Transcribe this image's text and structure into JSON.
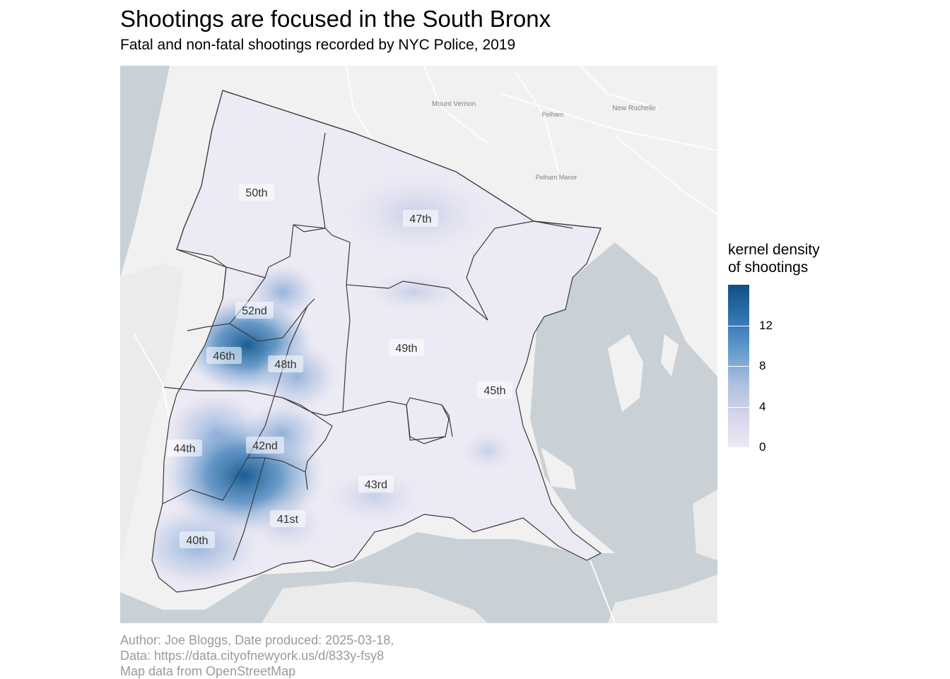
{
  "title": "Shootings are focused in the South Bronx",
  "subtitle": "Fatal and non-fatal shootings recorded by NYC Police, 2019",
  "legend": {
    "title_line1": "kernel density",
    "title_line2": "of shootings",
    "ticks": [
      {
        "label": "0",
        "value": 0
      },
      {
        "label": "4",
        "value": 4
      },
      {
        "label": "8",
        "value": 8
      },
      {
        "label": "12",
        "value": 12
      }
    ],
    "max_value": 16,
    "colors": [
      "#eceaf4",
      "#d5d4ea",
      "#a9bfdf",
      "#6a9ece",
      "#3a7cb8",
      "#0e4f86"
    ]
  },
  "precincts": [
    {
      "id": "50",
      "label": "50th"
    },
    {
      "id": "47",
      "label": "47th"
    },
    {
      "id": "52",
      "label": "52nd"
    },
    {
      "id": "46",
      "label": "46th"
    },
    {
      "id": "48",
      "label": "48th"
    },
    {
      "id": "49",
      "label": "49th"
    },
    {
      "id": "45",
      "label": "45th"
    },
    {
      "id": "44",
      "label": "44th"
    },
    {
      "id": "42",
      "label": "42nd"
    },
    {
      "id": "43",
      "label": "43rd"
    },
    {
      "id": "41",
      "label": "41st"
    },
    {
      "id": "40",
      "label": "40th"
    }
  ],
  "basemap_places": [
    {
      "id": "mount-vernon",
      "label": "Mount Vernon"
    },
    {
      "id": "pelham",
      "label": "Pelham"
    },
    {
      "id": "new-rochelle",
      "label": "New Rochelle"
    },
    {
      "id": "pelham-manor",
      "label": "Pelham Manor"
    }
  ],
  "caption": {
    "line1": "Author: Joe Bloggs, Date produced: 2025-03-18,",
    "line2": "Data: https://data.cityofnewyork.us/d/833y-fsy8",
    "line3": "Map data from OpenStreetMap"
  },
  "colors": {
    "water": "#c9d1d6",
    "land": "#f1f1f1",
    "boundary": "#3a3a3a",
    "density_low": "#eceaf4",
    "density_high": "#0e4f86"
  }
}
